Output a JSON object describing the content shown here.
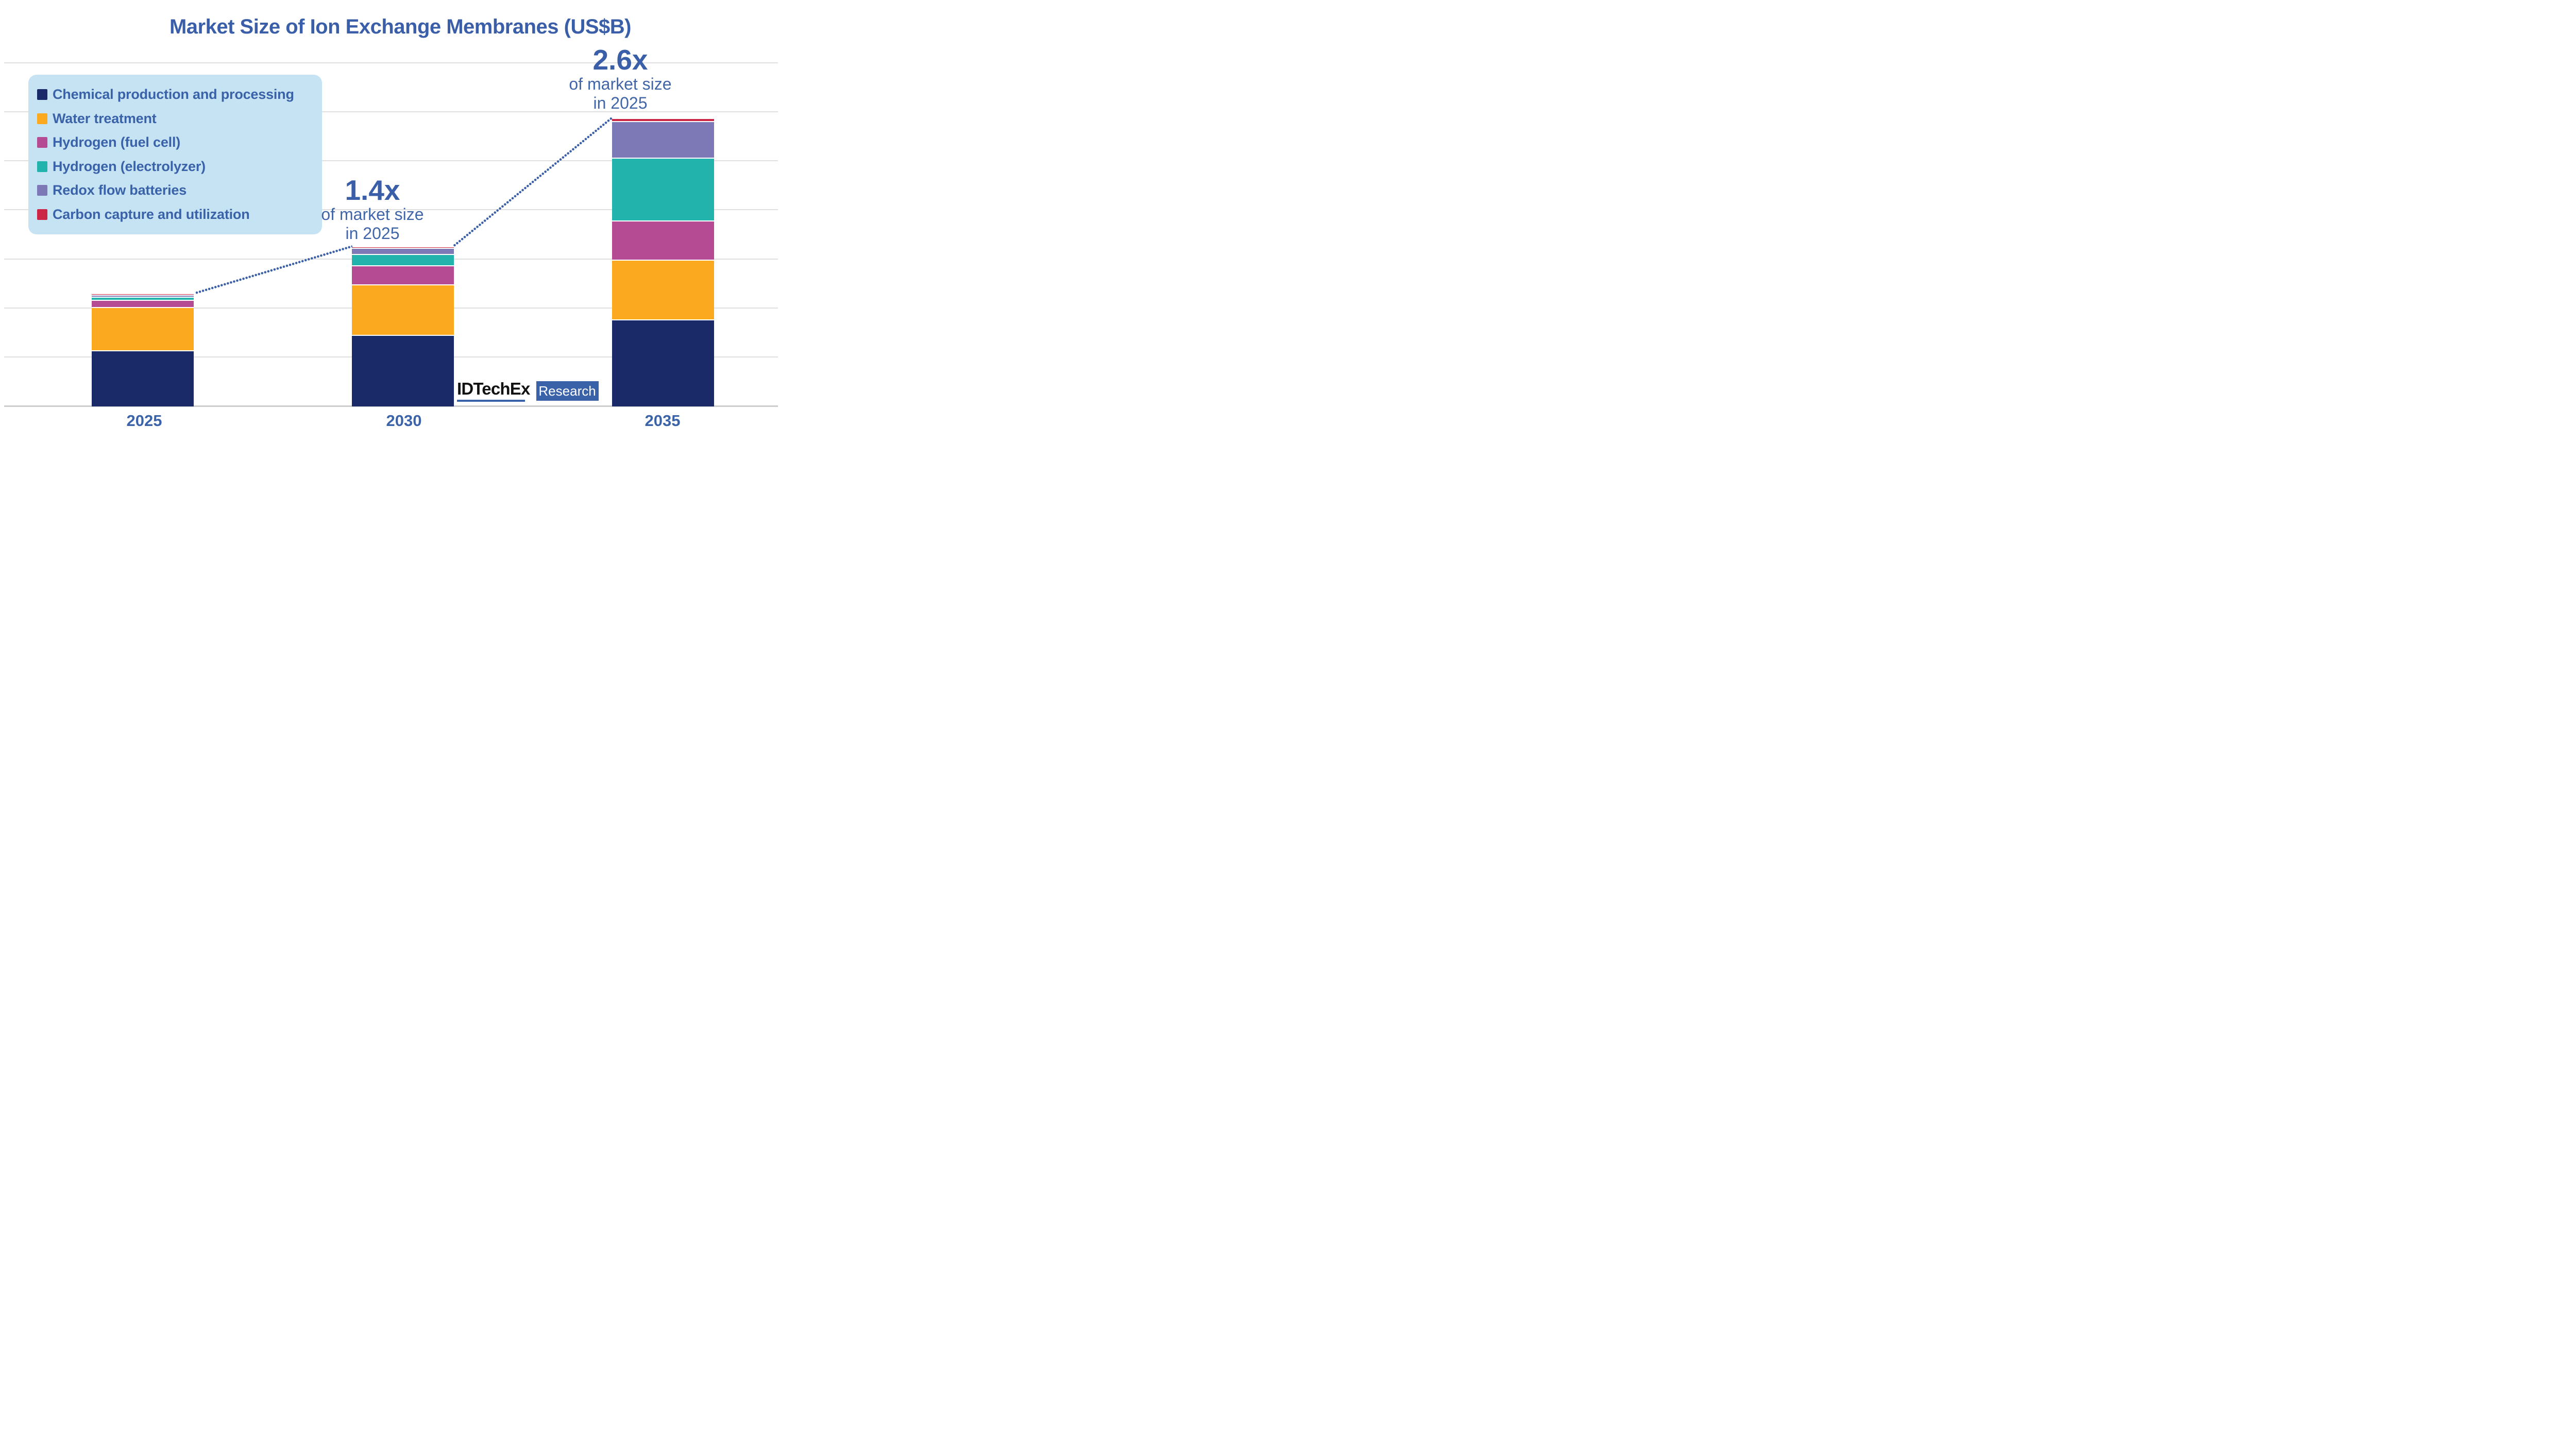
{
  "title": "Market Size of Ion Exchange Membranes (US$B)",
  "annotations": [
    {
      "target": "2030",
      "multiplier": "1.4x",
      "line1": "of market size",
      "line2": "in 2025"
    },
    {
      "target": "2035",
      "multiplier": "2.6x",
      "line1": "of market size",
      "line2": "in 2025"
    }
  ],
  "logo": {
    "brand": "IDTechEx",
    "label": "Research"
  },
  "colors": {
    "title_text": "#3A5FA8",
    "annotation_text": "#4066A8",
    "axis_label_text": "#3A63A9",
    "legend_background": "#C6E3F4",
    "gridline": "#E0E0E0",
    "dotted_connector": "#3A5FA6"
  },
  "chart_data": {
    "type": "bar",
    "stacked": true,
    "title": "Market Size of Ion Exchange Membranes (US$B)",
    "categories": [
      "2025",
      "2030",
      "2035"
    ],
    "series": [
      {
        "name": "Chemical production and processing",
        "color": "#1A2A68",
        "values": [
          0.49,
          0.63,
          0.77
        ]
      },
      {
        "name": "Water treatment",
        "color": "#FBA91F",
        "values": [
          0.39,
          0.45,
          0.53
        ]
      },
      {
        "name": "Hydrogen (fuel cell)",
        "color": "#B44B93",
        "values": [
          0.065,
          0.17,
          0.35
        ]
      },
      {
        "name": "Hydrogen (electrolyzer)",
        "color": "#21B3AC",
        "values": [
          0.025,
          0.1,
          0.56
        ]
      },
      {
        "name": "Redox flow batteries",
        "color": "#7D78B6",
        "values": [
          0.02,
          0.055,
          0.33
        ]
      },
      {
        "name": "Carbon capture and utilization",
        "color": "#CC2647",
        "values": [
          0.013,
          0.015,
          0.025
        ]
      }
    ],
    "stack_order_bottom_to_top": [
      "Chemical production and processing",
      "Water treatment",
      "Hydrogen (fuel cell)",
      "Hydrogen (electrolyzer)",
      "Redox flow batteries",
      "Carbon capture and utilization"
    ],
    "totals_relative_to_2025": [
      1.0,
      1.42,
      2.57
    ],
    "value_units": "relative units (2025 total = 1.0); y-axis has no tick labels",
    "xlabel": "",
    "ylabel": "",
    "grid": "horizontal gridlines only",
    "legend_position": "upper left, light-blue rounded box",
    "annotations_text": [
      "1.4x of market size in 2025 (above 2030 bar)",
      "2.6x of market size in 2025 (above 2035 bar)"
    ],
    "connectors": "blue dotted lines linking top of 2025 bar to top of 2030 bar, and top of 2030 bar to top of 2035 bar"
  }
}
